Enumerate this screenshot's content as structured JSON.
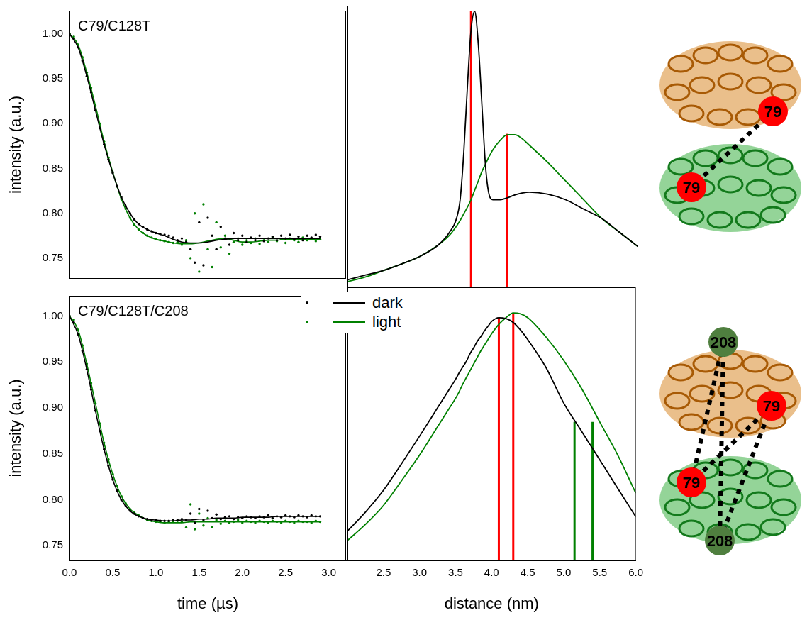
{
  "chart_data": [
    {
      "type": "scatter",
      "title": "C79/C128T",
      "y_label": "intensity (a.u.)",
      "xlim": [
        0,
        3.2
      ],
      "ylim": [
        0.727,
        1.026
      ],
      "yticks": [
        0.75,
        {
          "value": 0.8,
          "label": "0.80"
        },
        0.85,
        {
          "value": 0.9,
          "label": "0.90"
        },
        0.95,
        {
          "value": 1,
          "label": "1.00"
        }
      ],
      "grid": false,
      "tick_labels": "y",
      "x": [
        0,
        0.05,
        0.1,
        0.15,
        0.2,
        0.25,
        0.3,
        0.35,
        0.4,
        0.45,
        0.5,
        0.55,
        0.6,
        0.65,
        0.7,
        0.75,
        0.8,
        0.85,
        0.9,
        0.95,
        1,
        1.05,
        1.1,
        1.15,
        1.2,
        1.25,
        1.3,
        1.35,
        1.4,
        1.45,
        1.5,
        1.55,
        1.6,
        1.65,
        1.7,
        1.75,
        1.8,
        1.85,
        1.9,
        1.95,
        2,
        2.05,
        2.1,
        2.15,
        2.2,
        2.25,
        2.3,
        2.35,
        2.4,
        2.45,
        2.5,
        2.55,
        2.6,
        2.65,
        2.7,
        2.75,
        2.8,
        2.85,
        2.9
      ],
      "fit_x": [
        0,
        0.1,
        0.2,
        0.3,
        0.4,
        0.5,
        0.6,
        0.7,
        0.8,
        0.9,
        1,
        1.1,
        1.2,
        1.3,
        1.4,
        1.5,
        1.6,
        1.7,
        1.8,
        1.9,
        2,
        2.1,
        2.2,
        2.3,
        2.4,
        2.5,
        2.6,
        2.7,
        2.8,
        2.9
      ],
      "series": [
        {
          "name": "dark",
          "color": "#000000",
          "marker": "dot",
          "line_style": "solid",
          "values": [
            1.0,
            0.995,
            0.985,
            0.97,
            0.953,
            0.935,
            0.915,
            0.895,
            0.877,
            0.86,
            0.845,
            0.83,
            0.818,
            0.808,
            0.8,
            0.793,
            0.788,
            0.785,
            0.782,
            0.78,
            0.778,
            0.777,
            0.776,
            0.775,
            0.773,
            0.77,
            0.772,
            0.768,
            0.76,
            0.745,
            0.79,
            0.742,
            0.795,
            0.775,
            0.76,
            0.785,
            0.772,
            0.765,
            0.778,
            0.77,
            0.775,
            0.768,
            0.773,
            0.77,
            0.775,
            0.769,
            0.772,
            0.774,
            0.77,
            0.775,
            0.772,
            0.776,
            0.771,
            0.774,
            0.77,
            0.775,
            0.773,
            0.776,
            0.774
          ],
          "fit": [
            1.0,
            0.985,
            0.953,
            0.915,
            0.877,
            0.845,
            0.818,
            0.8,
            0.788,
            0.782,
            0.778,
            0.775,
            0.771,
            0.768,
            0.767,
            0.767,
            0.768,
            0.77,
            0.771,
            0.772,
            0.772,
            0.772,
            0.772,
            0.772,
            0.772,
            0.772,
            0.772,
            0.772,
            0.772,
            0.772
          ]
        },
        {
          "name": "light",
          "color": "#008000",
          "marker": "dot",
          "line_style": "solid",
          "values": [
            1.0,
            0.997,
            0.988,
            0.974,
            0.957,
            0.94,
            0.92,
            0.9,
            0.88,
            0.862,
            0.846,
            0.83,
            0.816,
            0.805,
            0.795,
            0.787,
            0.782,
            0.778,
            0.775,
            0.773,
            0.771,
            0.77,
            0.769,
            0.768,
            0.767,
            0.768,
            0.765,
            0.77,
            0.75,
            0.8,
            0.735,
            0.81,
            0.76,
            0.74,
            0.79,
            0.762,
            0.775,
            0.755,
            0.768,
            0.772,
            0.765,
            0.77,
            0.767,
            0.772,
            0.766,
            0.77,
            0.768,
            0.773,
            0.769,
            0.771,
            0.767,
            0.772,
            0.77,
            0.768,
            0.773,
            0.77,
            0.772,
            0.769,
            0.771
          ],
          "fit": [
            1.0,
            0.988,
            0.957,
            0.92,
            0.88,
            0.846,
            0.816,
            0.795,
            0.782,
            0.775,
            0.771,
            0.769,
            0.767,
            0.766,
            0.766,
            0.767,
            0.769,
            0.771,
            0.772,
            0.77,
            0.768,
            0.768,
            0.769,
            0.77,
            0.77,
            0.771,
            0.771,
            0.771,
            0.771,
            0.771
          ]
        }
      ]
    },
    {
      "type": "line",
      "xlim": [
        2.0,
        6.0
      ],
      "ylim": [
        0.727,
        1.026
      ],
      "grid": false,
      "tick_labels": false,
      "x": [
        2.0,
        2.25,
        2.5,
        2.75,
        3.0,
        3.25,
        3.4,
        3.5,
        3.55,
        3.6,
        3.65,
        3.7,
        3.75,
        3.8,
        3.85,
        3.9,
        3.95,
        4.0,
        4.1,
        4.2,
        4.3,
        4.4,
        4.5,
        4.75,
        5.0,
        5.25,
        5.5,
        5.75,
        6.0
      ],
      "series": [
        {
          "name": "dark",
          "color": "#000000",
          "line_style": "solid",
          "values": [
            0.735,
            0.74,
            0.745,
            0.752,
            0.76,
            0.772,
            0.785,
            0.8,
            0.82,
            0.87,
            0.94,
            1.0,
            1.02,
            0.985,
            0.92,
            0.855,
            0.825,
            0.82,
            0.82,
            0.822,
            0.825,
            0.827,
            0.828,
            0.826,
            0.82,
            0.81,
            0.8,
            0.785,
            0.77
          ]
        },
        {
          "name": "light",
          "color": "#008000",
          "line_style": "solid",
          "values": [
            0.733,
            0.738,
            0.745,
            0.752,
            0.76,
            0.772,
            0.782,
            0.792,
            0.798,
            0.805,
            0.812,
            0.82,
            0.83,
            0.84,
            0.85,
            0.858,
            0.866,
            0.873,
            0.883,
            0.889,
            0.889,
            0.885,
            0.878,
            0.86,
            0.84,
            0.82,
            0.8,
            0.785,
            0.77
          ]
        }
      ],
      "distance_lines": [
        {
          "x": 3.7,
          "y": 1.02,
          "color": "#ff0000"
        },
        {
          "x": 4.2,
          "y": 0.89,
          "color": "#ff0000"
        }
      ]
    },
    {
      "type": "scatter",
      "title": "C79/C128T/C208",
      "x_label": "time (µs)",
      "y_label": "intensity (a.u.)",
      "xlim": [
        0,
        3.2
      ],
      "ylim": [
        0.734,
        1.022
      ],
      "xticks": [
        {
          "value": 0,
          "label": "0.0"
        },
        0.5,
        {
          "value": 1,
          "label": "1.0"
        },
        1.5,
        {
          "value": 2,
          "label": "2.0"
        },
        2.5,
        {
          "value": 3,
          "label": "3.0"
        }
      ],
      "yticks": [
        0.75,
        {
          "value": 0.8,
          "label": "0.80"
        },
        0.85,
        {
          "value": 0.9,
          "label": "0.90"
        },
        0.95,
        {
          "value": 1,
          "label": "1.00"
        }
      ],
      "grid": false,
      "legend": "top",
      "x": [
        0,
        0.05,
        0.1,
        0.15,
        0.2,
        0.25,
        0.3,
        0.35,
        0.4,
        0.45,
        0.5,
        0.55,
        0.6,
        0.65,
        0.7,
        0.75,
        0.8,
        0.85,
        0.9,
        0.95,
        1,
        1.05,
        1.1,
        1.15,
        1.2,
        1.25,
        1.3,
        1.35,
        1.4,
        1.45,
        1.5,
        1.55,
        1.6,
        1.65,
        1.7,
        1.75,
        1.8,
        1.85,
        1.9,
        1.95,
        2,
        2.05,
        2.1,
        2.15,
        2.2,
        2.25,
        2.3,
        2.35,
        2.4,
        2.45,
        2.5,
        2.55,
        2.6,
        2.65,
        2.7,
        2.75,
        2.8,
        2.85,
        2.9
      ],
      "fit_x": [
        0,
        0.1,
        0.2,
        0.3,
        0.4,
        0.5,
        0.6,
        0.7,
        0.8,
        0.9,
        1,
        1.1,
        1.2,
        1.3,
        1.4,
        1.5,
        1.6,
        1.7,
        1.8,
        1.9,
        2,
        2.1,
        2.2,
        2.3,
        2.4,
        2.5,
        2.6,
        2.7,
        2.8,
        2.9
      ],
      "series": [
        {
          "name": "dark",
          "color": "#000000",
          "marker": "dot",
          "line_style": "solid",
          "values": [
            1.0,
            0.993,
            0.98,
            0.962,
            0.942,
            0.92,
            0.897,
            0.875,
            0.855,
            0.837,
            0.822,
            0.81,
            0.8,
            0.793,
            0.788,
            0.785,
            0.782,
            0.78,
            0.779,
            0.778,
            0.778,
            0.777,
            0.777,
            0.777,
            0.778,
            0.778,
            0.779,
            0.778,
            0.785,
            0.775,
            0.79,
            0.778,
            0.788,
            0.78,
            0.784,
            0.779,
            0.781,
            0.782,
            0.779,
            0.781,
            0.78,
            0.782,
            0.781,
            0.78,
            0.782,
            0.781,
            0.783,
            0.78,
            0.782,
            0.781,
            0.783,
            0.782,
            0.781,
            0.783,
            0.782,
            0.781,
            0.783,
            0.782,
            0.782
          ],
          "fit": [
            1.0,
            0.98,
            0.942,
            0.897,
            0.855,
            0.822,
            0.8,
            0.788,
            0.782,
            0.779,
            0.778,
            0.777,
            0.777,
            0.778,
            0.778,
            0.779,
            0.779,
            0.78,
            0.78,
            0.78,
            0.781,
            0.781,
            0.781,
            0.781,
            0.782,
            0.782,
            0.782,
            0.782,
            0.782,
            0.782
          ]
        },
        {
          "name": "light",
          "color": "#008000",
          "marker": "dot",
          "line_style": "solid",
          "values": [
            1.0,
            0.996,
            0.985,
            0.968,
            0.948,
            0.927,
            0.905,
            0.883,
            0.862,
            0.844,
            0.828,
            0.815,
            0.804,
            0.796,
            0.79,
            0.786,
            0.783,
            0.78,
            0.778,
            0.777,
            0.776,
            0.776,
            0.775,
            0.776,
            0.776,
            0.777,
            0.776,
            0.77,
            0.795,
            0.768,
            0.785,
            0.772,
            0.78,
            0.77,
            0.778,
            0.774,
            0.777,
            0.775,
            0.776,
            0.778,
            0.775,
            0.777,
            0.776,
            0.775,
            0.777,
            0.776,
            0.775,
            0.777,
            0.776,
            0.775,
            0.777,
            0.776,
            0.775,
            0.777,
            0.776,
            0.776,
            0.775,
            0.777,
            0.776
          ],
          "fit": [
            1.0,
            0.985,
            0.948,
            0.905,
            0.862,
            0.828,
            0.804,
            0.79,
            0.783,
            0.778,
            0.776,
            0.775,
            0.775,
            0.775,
            0.776,
            0.776,
            0.776,
            0.776,
            0.776,
            0.776,
            0.776,
            0.776,
            0.776,
            0.776,
            0.776,
            0.776,
            0.776,
            0.776,
            0.776,
            0.776
          ]
        }
      ]
    },
    {
      "type": "line",
      "x_label": "distance (nm)",
      "xlim": [
        2.0,
        6.0
      ],
      "ylim": [
        0.734,
        1.022
      ],
      "xticks": [
        2.5,
        {
          "value": 3,
          "label": "3.0"
        },
        3.5,
        {
          "value": 4,
          "label": "4.0"
        },
        4.5,
        {
          "value": 5,
          "label": "5.0"
        },
        5.5,
        {
          "value": 6,
          "label": "6.0"
        }
      ],
      "grid": false,
      "tick_labels": "x",
      "x": [
        2.0,
        2.25,
        2.5,
        2.75,
        3.0,
        3.25,
        3.4,
        3.5,
        3.55,
        3.6,
        3.65,
        3.7,
        3.75,
        3.8,
        3.85,
        3.9,
        3.95,
        4.0,
        4.1,
        4.2,
        4.3,
        4.4,
        4.5,
        4.75,
        5.0,
        5.25,
        5.5,
        5.75,
        6.0
      ],
      "series": [
        {
          "name": "dark",
          "color": "#000000",
          "line_style": "solid",
          "values": [
            0.765,
            0.785,
            0.808,
            0.836,
            0.865,
            0.895,
            0.913,
            0.925,
            0.932,
            0.938,
            0.944,
            0.952,
            0.958,
            0.965,
            0.97,
            0.976,
            0.981,
            0.986,
            0.99,
            0.989,
            0.985,
            0.977,
            0.967,
            0.938,
            0.9,
            0.87,
            0.84,
            0.81,
            0.78
          ]
        },
        {
          "name": "light",
          "color": "#008000",
          "line_style": "solid",
          "values": [
            0.755,
            0.772,
            0.792,
            0.818,
            0.845,
            0.875,
            0.893,
            0.905,
            0.912,
            0.92,
            0.927,
            0.934,
            0.941,
            0.948,
            0.955,
            0.961,
            0.967,
            0.973,
            0.983,
            0.99,
            0.995,
            0.994,
            0.99,
            0.97,
            0.945,
            0.915,
            0.88,
            0.845,
            0.805
          ]
        }
      ],
      "distance_lines": [
        {
          "x": 4.1,
          "y": 0.99,
          "color": "#ff0000"
        },
        {
          "x": 4.3,
          "y": 0.995,
          "color": "#ff0000"
        },
        {
          "x": 5.15,
          "y": 0.88,
          "color": "#008000"
        },
        {
          "x": 5.4,
          "y": 0.88,
          "color": "#008000"
        }
      ]
    }
  ],
  "structures": [
    {
      "sites": [
        {
          "label": "79",
          "color": "#ff0000"
        },
        {
          "label": "79",
          "color": "#ff0000"
        }
      ]
    },
    {
      "sites": [
        {
          "label": "208",
          "color": "#4f7f3f"
        },
        {
          "label": "79",
          "color": "#ff0000"
        },
        {
          "label": "79",
          "color": "#ff0000"
        },
        {
          "label": "208",
          "color": "#4f7f3f"
        }
      ]
    }
  ]
}
